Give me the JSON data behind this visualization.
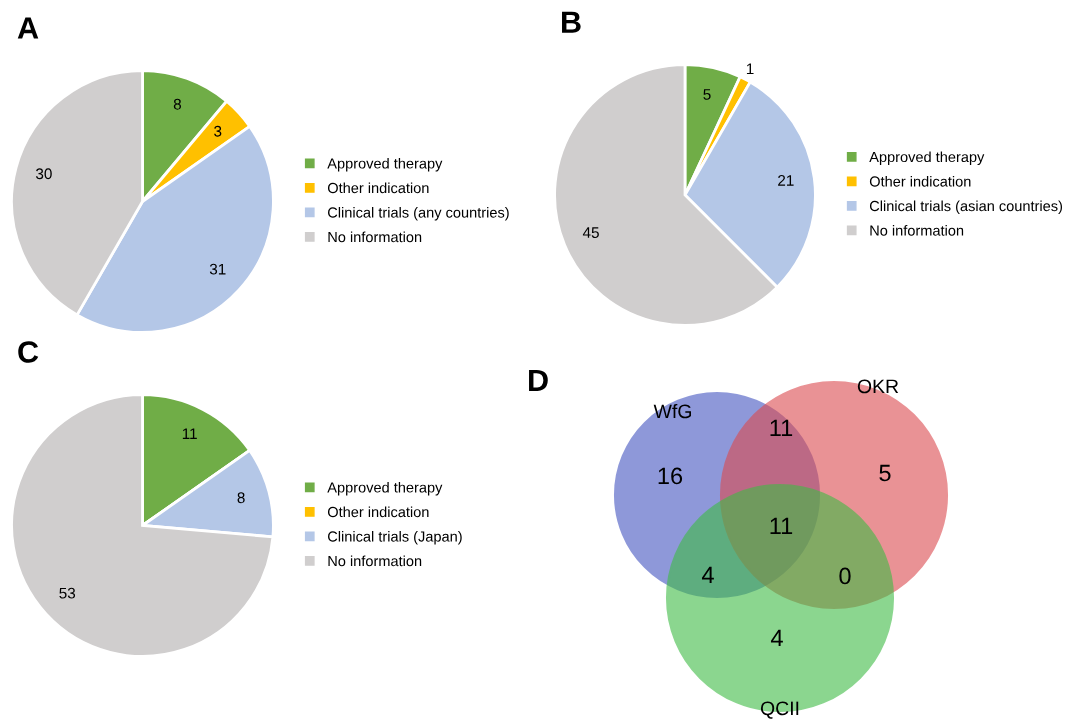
{
  "chart_data": [
    {
      "type": "pie",
      "title": "A",
      "categories": [
        "Approved therapy",
        "Other indication",
        "Clinical trials (any countries)",
        "No information"
      ],
      "values": [
        8,
        3,
        31,
        30
      ],
      "colors": [
        "#70ad47",
        "#ffc000",
        "#b4c7e7",
        "#d0cece"
      ],
      "data_labels": true,
      "legend": "right"
    },
    {
      "type": "pie",
      "title": "B",
      "categories": [
        "Approved therapy",
        "Other indication",
        "Clinical trials (asian countries)",
        "No information"
      ],
      "values": [
        5,
        1,
        21,
        45
      ],
      "colors": [
        "#70ad47",
        "#ffc000",
        "#b4c7e7",
        "#d0cece"
      ],
      "data_labels": true,
      "legend": "right"
    },
    {
      "type": "pie",
      "title": "C",
      "categories": [
        "Approved therapy",
        "Other indication",
        "Clinical trials (Japan)",
        "No information"
      ],
      "values": [
        11,
        0,
        8,
        53
      ],
      "value_labels": [
        "11",
        null,
        "8",
        "53"
      ],
      "colors": [
        "#70ad47",
        "#ffc000",
        "#b4c7e7",
        "#d0cece"
      ],
      "legend": "right"
    },
    {
      "type": "other",
      "title": "D",
      "annotations": [
        "WfG",
        "OKR",
        "QCII",
        "16",
        "5",
        "4",
        "11",
        "4",
        "0",
        "11"
      ]
    }
  ]
}
